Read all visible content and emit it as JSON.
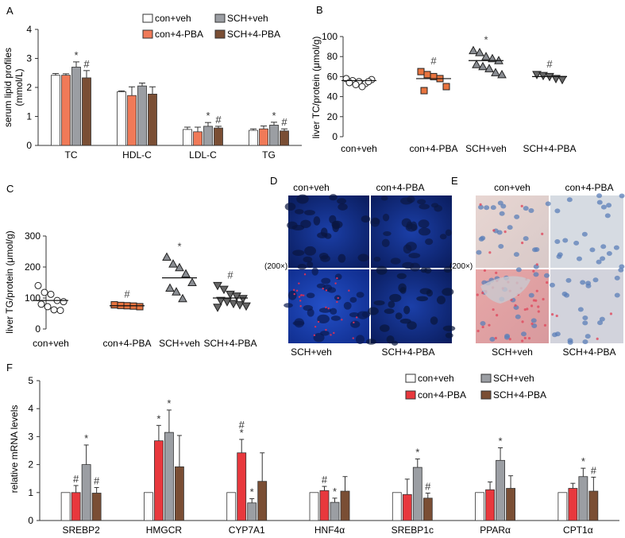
{
  "panel_labels": {
    "A": "A",
    "B": "B",
    "C": "C",
    "D": "D",
    "E": "E",
    "F": "F"
  },
  "legend": {
    "con_veh": "con+veh",
    "con_pba": "con+4-PBA",
    "sch_veh": "SCH+veh",
    "sch_pba": "SCH+4-PBA"
  },
  "colors": {
    "con_veh": "#ffffff",
    "con_pba_A": "#f07a58",
    "con_pba_F": "#e8383d",
    "sch_veh": "#9b9ea3",
    "sch_pba": "#7a4e34",
    "line": "#333333"
  },
  "symbols": {
    "star": "*",
    "hash": "#"
  },
  "magnification": "(200×)",
  "micro_D": {
    "top_left": "con+veh",
    "top_right": "con+4-PBA",
    "bottom_left": "SCH+veh",
    "bottom_right": "SCH+4-PBA"
  },
  "micro_E": {
    "top_left": "con+veh",
    "top_right": "con+4-PBA",
    "bottom_left": "SCH+veh",
    "bottom_right": "SCH+4-PBA"
  },
  "chart_data": [
    {
      "id": "A",
      "type": "bar",
      "ylabel": "serum lipid profiles",
      "ylabel2": "(mmol/L)",
      "ylim": [
        0,
        4
      ],
      "yticks": [
        "0",
        "1",
        "2",
        "3",
        "4"
      ],
      "categories": [
        "TC",
        "HDL-C",
        "LDL-C",
        "TG"
      ],
      "series": [
        {
          "name": "con+veh",
          "values": [
            2.42,
            1.85,
            0.55,
            0.52
          ],
          "errors": [
            0.06,
            0.03,
            0.08,
            0.05
          ]
        },
        {
          "name": "con+4-PBA",
          "values": [
            2.42,
            1.72,
            0.47,
            0.57
          ],
          "errors": [
            0.05,
            0.3,
            0.16,
            0.1
          ]
        },
        {
          "name": "SCH+veh",
          "values": [
            2.7,
            2.05,
            0.66,
            0.7
          ],
          "errors": [
            0.18,
            0.1,
            0.13,
            0.1
          ]
        },
        {
          "name": "SCH+4-PBA",
          "values": [
            2.33,
            1.77,
            0.6,
            0.5
          ],
          "errors": [
            0.25,
            0.25,
            0.06,
            0.07
          ]
        }
      ],
      "annotations": [
        {
          "text": "*",
          "category": "TC",
          "series": 2
        },
        {
          "text": "#",
          "category": "TC",
          "series": 3
        },
        {
          "text": "*",
          "category": "LDL-C",
          "series": 2
        },
        {
          "text": "#",
          "category": "LDL-C",
          "series": 3
        },
        {
          "text": "*",
          "category": "TG",
          "series": 2
        },
        {
          "text": "#",
          "category": "TG",
          "series": 3
        }
      ]
    },
    {
      "id": "B",
      "type": "scatter",
      "ylabel": "liver TC/protein (μmol/g)",
      "ylim": [
        0,
        100
      ],
      "yticks": [
        "0",
        "20",
        "40",
        "60",
        "80",
        "100"
      ],
      "categories": [
        "con+veh",
        "con+4-PBA",
        "SCH+veh",
        "SCH+4-PBA"
      ],
      "markers": [
        "circle",
        "square",
        "triangle-up",
        "triangle-down"
      ],
      "groups": [
        {
          "points": [
            58,
            56,
            55,
            53,
            57,
            54,
            52,
            50,
            55
          ],
          "mean": 56
        },
        {
          "points": [
            65,
            62,
            60,
            58,
            50,
            46
          ],
          "mean": 58
        },
        {
          "points": [
            86,
            84,
            80,
            78,
            76,
            72,
            70,
            68,
            64,
            62
          ],
          "mean": 76
        },
        {
          "points": [
            62,
            61,
            60,
            58,
            57
          ],
          "mean": 60
        }
      ],
      "annotations": [
        {
          "text": "#",
          "group": 1
        },
        {
          "text": "*",
          "group": 2
        },
        {
          "text": "#",
          "group": 3
        }
      ]
    },
    {
      "id": "C",
      "type": "scatter",
      "ylabel": "liver TG/protein (μmol/g)",
      "ylim": [
        0,
        300
      ],
      "yticks": [
        "0",
        "100",
        "200",
        "300"
      ],
      "categories": [
        "con+veh",
        "con+4-PBA",
        "SCH+veh",
        "SCH+4-PBA"
      ],
      "markers": [
        "circle",
        "square",
        "triangle-up",
        "triangle-down"
      ],
      "groups": [
        {
          "points": [
            140,
            118,
            112,
            92,
            88,
            80,
            72,
            62,
            60
          ],
          "mean": 92
        },
        {
          "points": [
            78,
            76,
            75,
            74,
            72
          ],
          "mean": 75
        },
        {
          "points": [
            232,
            210,
            198,
            178,
            150,
            132,
            120,
            98
          ],
          "mean": 165
        },
        {
          "points": [
            140,
            128,
            112,
            106,
            98,
            92,
            88,
            82,
            78,
            74,
            70
          ],
          "mean": 100
        }
      ],
      "annotations": [
        {
          "text": "#",
          "group": 1
        },
        {
          "text": "*",
          "group": 2
        },
        {
          "text": "#",
          "group": 3
        }
      ]
    },
    {
      "id": "F",
      "type": "bar",
      "ylabel": "relative mRNA levels",
      "ylim": [
        0,
        5
      ],
      "yticks": [
        "0",
        "1",
        "2",
        "3",
        "4",
        "5"
      ],
      "categories": [
        "SREBP2",
        "HMGCR",
        "CYP7A1",
        "HNF4α",
        "SREBP1c",
        "PPARα",
        "CPT1α"
      ],
      "series": [
        {
          "name": "con+veh",
          "values": [
            1,
            1,
            1,
            1,
            1,
            1,
            1
          ],
          "errors": [
            0,
            0,
            0,
            0,
            0,
            0,
            0
          ]
        },
        {
          "name": "con+4-PBA",
          "values": [
            1.0,
            2.85,
            2.42,
            1.07,
            0.93,
            1.1,
            1.15
          ],
          "errors": [
            0.25,
            0.55,
            0.48,
            0.15,
            0.55,
            0.28,
            0.18
          ]
        },
        {
          "name": "SCH+veh",
          "values": [
            2.0,
            3.15,
            0.63,
            0.65,
            1.9,
            2.15,
            1.57
          ],
          "errors": [
            0.7,
            0.8,
            0.15,
            0.15,
            0.3,
            0.45,
            0.3
          ]
        },
        {
          "name": "SCH+4-PBA",
          "values": [
            0.98,
            1.92,
            1.4,
            1.05,
            0.8,
            1.15,
            1.05
          ],
          "errors": [
            0.2,
            1.12,
            1.02,
            0.52,
            0.18,
            0.45,
            0.5
          ]
        }
      ],
      "annotations": [
        {
          "text": "#",
          "category": "SREBP2",
          "series": 1
        },
        {
          "text": "*",
          "category": "SREBP2",
          "series": 2
        },
        {
          "text": "#",
          "category": "SREBP2",
          "series": 3
        },
        {
          "text": "*",
          "category": "HMGCR",
          "series": 1
        },
        {
          "text": "*",
          "category": "HMGCR",
          "series": 2
        },
        {
          "text": "*",
          "category": "CYP7A1",
          "series": 1
        },
        {
          "text": "#",
          "category": "CYP7A1",
          "series": 1,
          "stack": 1
        },
        {
          "text": "*",
          "category": "CYP7A1",
          "series": 2
        },
        {
          "text": "#",
          "category": "HNF4α",
          "series": 1
        },
        {
          "text": "*",
          "category": "HNF4α",
          "series": 2
        },
        {
          "text": "*",
          "category": "SREBP1c",
          "series": 2
        },
        {
          "text": "#",
          "category": "SREBP1c",
          "series": 3
        },
        {
          "text": "*",
          "category": "PPARα",
          "series": 2
        },
        {
          "text": "*",
          "category": "CPT1α",
          "series": 2
        },
        {
          "text": "#",
          "category": "CPT1α",
          "series": 3
        }
      ]
    }
  ]
}
